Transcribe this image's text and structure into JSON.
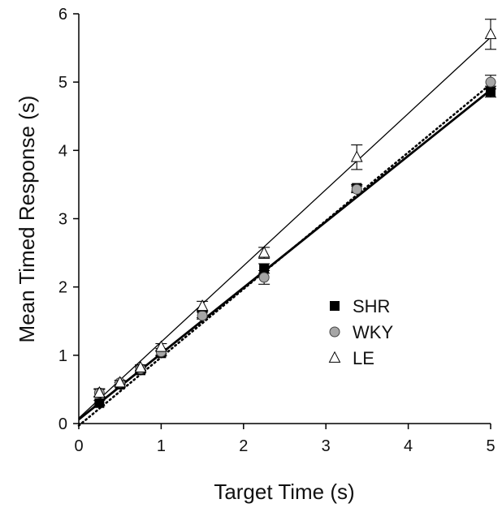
{
  "chart_data": {
    "type": "scatter",
    "title": "",
    "xlabel": "Target Time (s)",
    "ylabel": "Mean Timed Response (s)",
    "xlim": [
      0,
      5
    ],
    "ylim": [
      0,
      6
    ],
    "xticks": [
      "0",
      "1",
      "2",
      "3",
      "4",
      "5"
    ],
    "yticks": [
      "0",
      "1",
      "2",
      "3",
      "4",
      "5",
      "6"
    ],
    "grid": false,
    "legend_position": "bottom-right",
    "series": [
      {
        "name": "SHR",
        "marker": "square",
        "color": "#000000",
        "x": [
          0.25,
          0.5,
          0.75,
          1.0,
          1.5,
          2.25,
          3.375,
          5.0
        ],
        "y": [
          0.3,
          0.57,
          0.78,
          1.03,
          1.6,
          2.27,
          3.45,
          4.86
        ],
        "err": [
          0.04,
          0.03,
          0.04,
          0.04,
          0.05,
          0.07,
          0.05,
          0.08
        ],
        "fit": {
          "intercept": 0.06,
          "slope": 0.965,
          "line": "solid-thick"
        }
      },
      {
        "name": "WKY",
        "marker": "circle",
        "color": "#a6a6a6",
        "x": [
          0.25,
          0.5,
          0.75,
          1.0,
          1.5,
          2.25,
          3.375,
          5.0
        ],
        "y": [
          0.45,
          0.6,
          0.8,
          1.05,
          1.58,
          2.14,
          3.43,
          5.0
        ],
        "err": [
          0.05,
          0.03,
          0.04,
          0.05,
          0.05,
          0.1,
          0.05,
          0.1
        ],
        "fit": {
          "intercept": -0.03,
          "slope": 1.0,
          "line": "dotted"
        }
      },
      {
        "name": "LE",
        "marker": "triangle",
        "color": "#ffffff",
        "x": [
          0.25,
          0.5,
          0.75,
          1.0,
          1.5,
          2.25,
          3.375,
          5.0
        ],
        "y": [
          0.45,
          0.6,
          0.82,
          1.12,
          1.72,
          2.5,
          3.9,
          5.7
        ],
        "err": [
          0.06,
          0.03,
          0.04,
          0.05,
          0.07,
          0.08,
          0.18,
          0.22
        ],
        "fit": {
          "intercept": 0.08,
          "slope": 1.115,
          "line": "solid-thin"
        }
      }
    ]
  }
}
